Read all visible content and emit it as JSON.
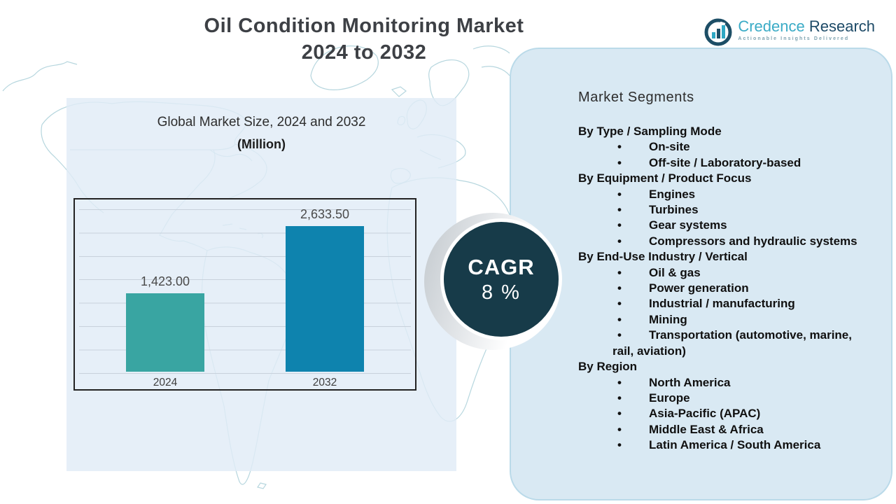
{
  "page": {
    "title_line1": "Oil Condition Monitoring Market",
    "title_line2": "2024 to 2032"
  },
  "logo": {
    "brand_first": "Credence",
    "brand_second": "Research",
    "tagline": "Actionable Insights Delivered"
  },
  "chart_data": {
    "type": "bar",
    "title": "Global Market Size, 2024 and 2032",
    "subtitle": "(Million)",
    "categories": [
      "2024",
      "2032"
    ],
    "values": [
      1423.0,
      2633.5
    ],
    "value_labels": [
      "1,423.00",
      "2,633.50"
    ],
    "bar_colors": [
      "#39a5a2",
      "#0e83ae"
    ],
    "xlabel": "",
    "ylabel": "",
    "ylim": [
      0,
      3000
    ],
    "grid": true,
    "legend_position": "none"
  },
  "cagr": {
    "label": "CAGR",
    "value": "8 %"
  },
  "segments": {
    "heading": "Market Segments",
    "groups": [
      {
        "label": "By Type / Sampling Mode",
        "items": [
          "On-site",
          "Off-site / Laboratory-based"
        ]
      },
      {
        "label": "By Equipment / Product Focus",
        "items": [
          "Engines",
          "Turbines",
          "Gear systems",
          "Compressors and hydraulic systems"
        ]
      },
      {
        "label": "By End-Use Industry / Vertical",
        "items": [
          "Oil & gas",
          "Power generation",
          "Industrial / manufacturing",
          "Mining",
          "Transportation (automotive, marine, rail, aviation)"
        ]
      },
      {
        "label": "By Region",
        "items": [
          "North America",
          "Europe",
          "Asia-Pacific (APAC)",
          "Middle East & Africa",
          "Latin America / South America"
        ]
      }
    ]
  },
  "colors": {
    "panel_bg": "#d9e9f3",
    "left_bg": "#e6eef7",
    "cagr_circle": "#173b49",
    "bar_2024": "#39a5a2",
    "bar_2032": "#0e83ae",
    "brand_teal": "#3aabc6",
    "brand_navy": "#1d4a67",
    "map_line": "#a9cfd8"
  }
}
